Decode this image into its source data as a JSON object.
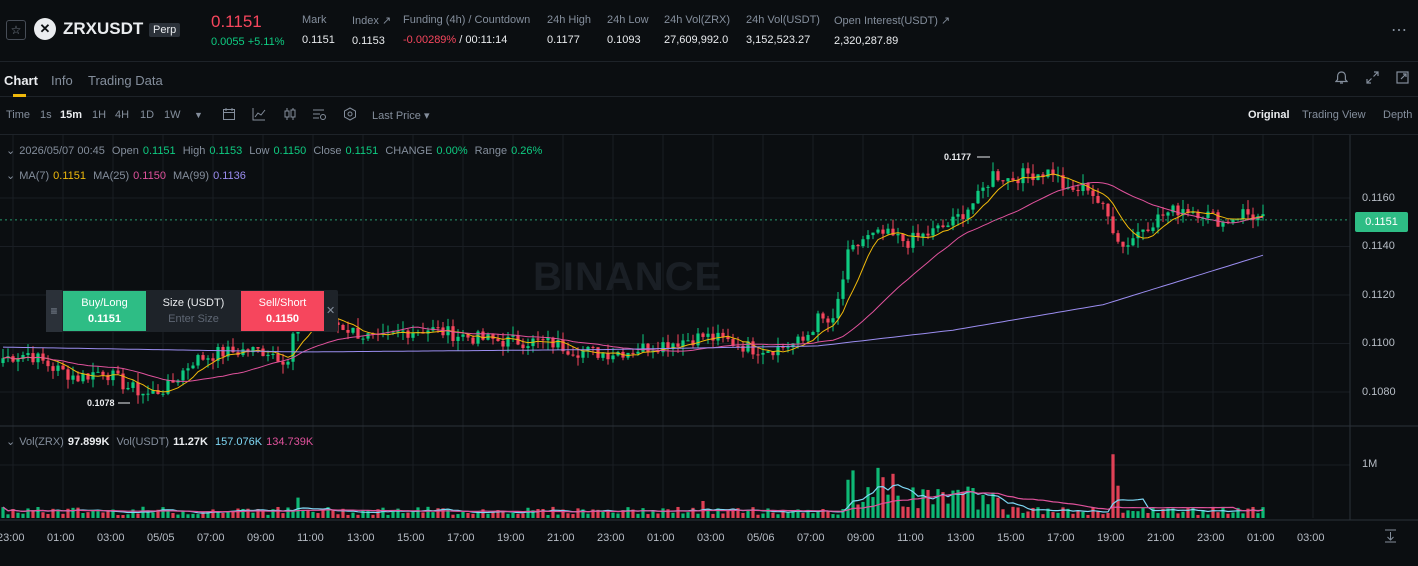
{
  "header": {
    "fav_icon": "star-icon",
    "logo_icon": "zrx-logo-icon",
    "symbol": "ZRXUSDT",
    "badge": "Perp",
    "last_price": "0.1151",
    "change": "0.0055 +5.11%",
    "stats": [
      {
        "label": "Mark",
        "value": "0.1151"
      },
      {
        "label": "Index ↗",
        "value": "0.1153"
      },
      {
        "label": "Funding (4h) / Countdown",
        "value_neg": "-0.00289%",
        "value_rest": " / 00:11:14"
      },
      {
        "label": "24h High",
        "value": "0.1177"
      },
      {
        "label": "24h Low",
        "value": "0.1093"
      },
      {
        "label": "24h Vol(ZRX)",
        "value": "27,609,992.0"
      },
      {
        "label": "24h Vol(USDT)",
        "value": "3,152,523.27"
      },
      {
        "label": "Open Interest(USDT) ↗",
        "value": "2,320,287.89"
      }
    ],
    "more_icon": "more-dots-icon"
  },
  "tabs": [
    {
      "label": "Chart",
      "active": true
    },
    {
      "label": "Info",
      "active": false
    },
    {
      "label": "Trading Data",
      "active": false
    }
  ],
  "toolbar": {
    "intervals": [
      "Time",
      "1s",
      "15m",
      "1H",
      "4H",
      "1D",
      "1W"
    ],
    "active_interval": "15m",
    "price_type": "Last Price ▾",
    "views": [
      "Original",
      "Trading View",
      "Depth"
    ],
    "active_view": "Original"
  },
  "legend": {
    "date": "2026/05/07 00:45",
    "open_label": "Open",
    "open": "0.1151",
    "high_label": "High",
    "high": "0.1153",
    "low_label": "Low",
    "low": "0.1150",
    "close_label": "Close",
    "close": "0.1151",
    "change_label": "CHANGE",
    "change": "0.00%",
    "range_label": "Range",
    "range": "0.26%",
    "ma7_label": "MA(7)",
    "ma7": "0.1151",
    "ma25_label": "MA(25)",
    "ma25": "0.1150",
    "ma99_label": "MA(99)",
    "ma99": "0.1136",
    "vol_label": "Vol(ZRX)",
    "vol": "97.899K",
    "volusdt_label": "Vol(USDT)",
    "volusdt": "11.27K",
    "volma1": "157.076K",
    "volma2": "134.739K"
  },
  "trade_panel": {
    "buy_label": "Buy/Long",
    "buy_price": "0.1151",
    "size_label": "Size (USDT)",
    "size_placeholder": "Enter Size",
    "sell_label": "Sell/Short",
    "sell_price": "0.1150"
  },
  "watermark": "BINANCE",
  "colors": {
    "up": "#0ecb81",
    "down": "#f6465d",
    "accent": "#f0b90b",
    "ma7": "#f0b90b",
    "ma25": "#e0529c",
    "ma99": "#9b8df0"
  },
  "chart_data": {
    "type": "candlestick",
    "interval": "15m",
    "y_ticks": [
      "0.1160",
      "0.1140",
      "0.1120",
      "0.1100",
      "0.1080"
    ],
    "ylim": [
      0.1069,
      0.1186
    ],
    "current_price": "0.1151",
    "volume_tick": "1M",
    "x_ticks": [
      "23:00",
      "01:00",
      "03:00",
      "05/05",
      "07:00",
      "09:00",
      "11:00",
      "13:00",
      "15:00",
      "17:00",
      "19:00",
      "21:00",
      "23:00",
      "01:00",
      "03:00",
      "05/06",
      "07:00",
      "09:00",
      "11:00",
      "13:00",
      "15:00",
      "17:00",
      "19:00",
      "21:00",
      "23:00",
      "01:00",
      "03:00"
    ],
    "annotations": [
      {
        "label": "0.1177",
        "type": "high"
      },
      {
        "label": "0.1078",
        "type": "low"
      }
    ],
    "close_anchors": [
      [
        0,
        0.1094
      ],
      [
        5,
        0.1096
      ],
      [
        10,
        0.109
      ],
      [
        15,
        0.1086
      ],
      [
        20,
        0.1089
      ],
      [
        25,
        0.1082
      ],
      [
        29,
        0.1079
      ],
      [
        33,
        0.1082
      ],
      [
        38,
        0.1093
      ],
      [
        43,
        0.1096
      ],
      [
        48,
        0.1097
      ],
      [
        53,
        0.1097
      ],
      [
        57,
        0.1093
      ],
      [
        59,
        0.1113
      ],
      [
        65,
        0.111
      ],
      [
        70,
        0.1105
      ],
      [
        75,
        0.1101
      ],
      [
        80,
        0.1105
      ],
      [
        85,
        0.1106
      ],
      [
        90,
        0.1104
      ],
      [
        95,
        0.1102
      ],
      [
        100,
        0.1101
      ],
      [
        105,
        0.1101
      ],
      [
        110,
        0.11
      ],
      [
        115,
        0.1097
      ],
      [
        120,
        0.1096
      ],
      [
        125,
        0.1097
      ],
      [
        130,
        0.1099
      ],
      [
        135,
        0.1101
      ],
      [
        140,
        0.1103
      ],
      [
        145,
        0.1101
      ],
      [
        150,
        0.1098
      ],
      [
        155,
        0.1098
      ],
      [
        160,
        0.1101
      ],
      [
        163,
        0.111
      ],
      [
        166,
        0.1108
      ],
      [
        169,
        0.1136
      ],
      [
        172,
        0.1143
      ],
      [
        176,
        0.1145
      ],
      [
        181,
        0.1142
      ],
      [
        186,
        0.1146
      ],
      [
        190,
        0.115
      ],
      [
        195,
        0.116
      ],
      [
        198,
        0.117
      ],
      [
        201,
        0.1168
      ],
      [
        205,
        0.117
      ],
      [
        210,
        0.1171
      ],
      [
        213,
        0.1162
      ],
      [
        217,
        0.1165
      ],
      [
        221,
        0.1152
      ],
      [
        224,
        0.114
      ],
      [
        228,
        0.1148
      ],
      [
        232,
        0.1153
      ],
      [
        236,
        0.1156
      ],
      [
        240,
        0.1154
      ],
      [
        244,
        0.115
      ],
      [
        248,
        0.1154
      ],
      [
        252,
        0.1151
      ]
    ],
    "ma99_anchors": [
      [
        0,
        0.10985
      ],
      [
        60,
        0.10965
      ],
      [
        120,
        0.10975
      ],
      [
        163,
        0.1099
      ],
      [
        190,
        0.11055
      ],
      [
        220,
        0.1116
      ],
      [
        252,
        0.11364
      ]
    ],
    "volume_base_k": 70,
    "volume_spikes_k": [
      [
        59,
        240
      ],
      [
        140,
        200
      ],
      [
        169,
        450
      ],
      [
        170,
        560
      ],
      [
        175,
        590
      ],
      [
        176,
        480
      ],
      [
        178,
        520
      ],
      [
        185,
        330
      ],
      [
        198,
        300
      ],
      [
        222,
        750
      ],
      [
        223,
        380
      ]
    ]
  }
}
